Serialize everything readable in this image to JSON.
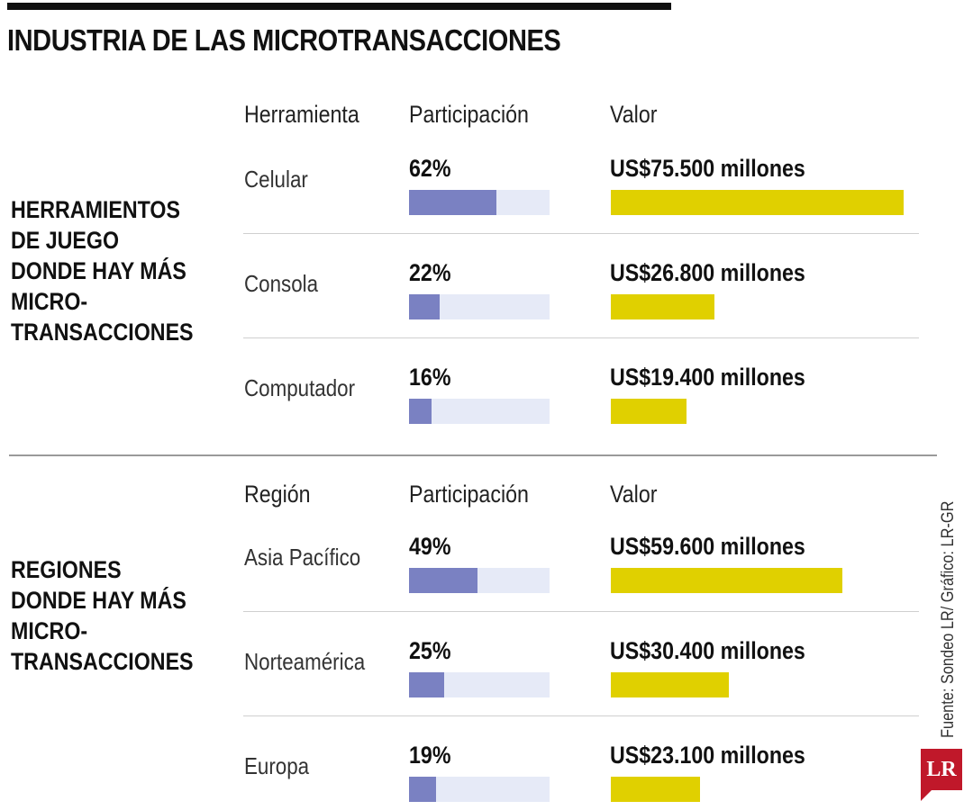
{
  "title": "INDUSTRIA DE LAS MICROTRANSACCIONES",
  "source": "Fuente: Sondeo LR/ Gráfico: LR-GR",
  "logo": "LR",
  "colors": {
    "participation_fill": "#7a81c2",
    "participation_track": "#e6eaf7",
    "value_bar": "#e0d000"
  },
  "chart_data": [
    {
      "type": "bar",
      "title": "HERRAMIENTOS DE JUEGO DONDE HAY MÁS MICRO- TRANSACCIONES",
      "category_header": "Herramienta",
      "share_header": "Participación",
      "value_header": "Valor",
      "categories": [
        "Celular",
        "Consola",
        "Computador"
      ],
      "share_pct": [
        62,
        22,
        16
      ],
      "share_labels": [
        "62%",
        "22%",
        "16%"
      ],
      "values_musd": [
        75500,
        26800,
        19400
      ],
      "value_labels": [
        "US$75.500 millones",
        "US$26.800 millones",
        "US$19.400 millones"
      ]
    },
    {
      "type": "bar",
      "title": "REGIONES DONDE HAY MÁS MICRO- TRANSACCIONES",
      "category_header": "Región",
      "share_header": "Participación",
      "value_header": "Valor",
      "categories": [
        "Asia Pacífico",
        "Norteamérica",
        "Europa"
      ],
      "share_pct": [
        49,
        25,
        19
      ],
      "share_labels": [
        "49%",
        "25%",
        "19%"
      ],
      "values_musd": [
        59600,
        30400,
        23100
      ],
      "value_labels": [
        "US$59.600 millones",
        "US$30.400 millones",
        "US$23.100 millones"
      ]
    }
  ]
}
